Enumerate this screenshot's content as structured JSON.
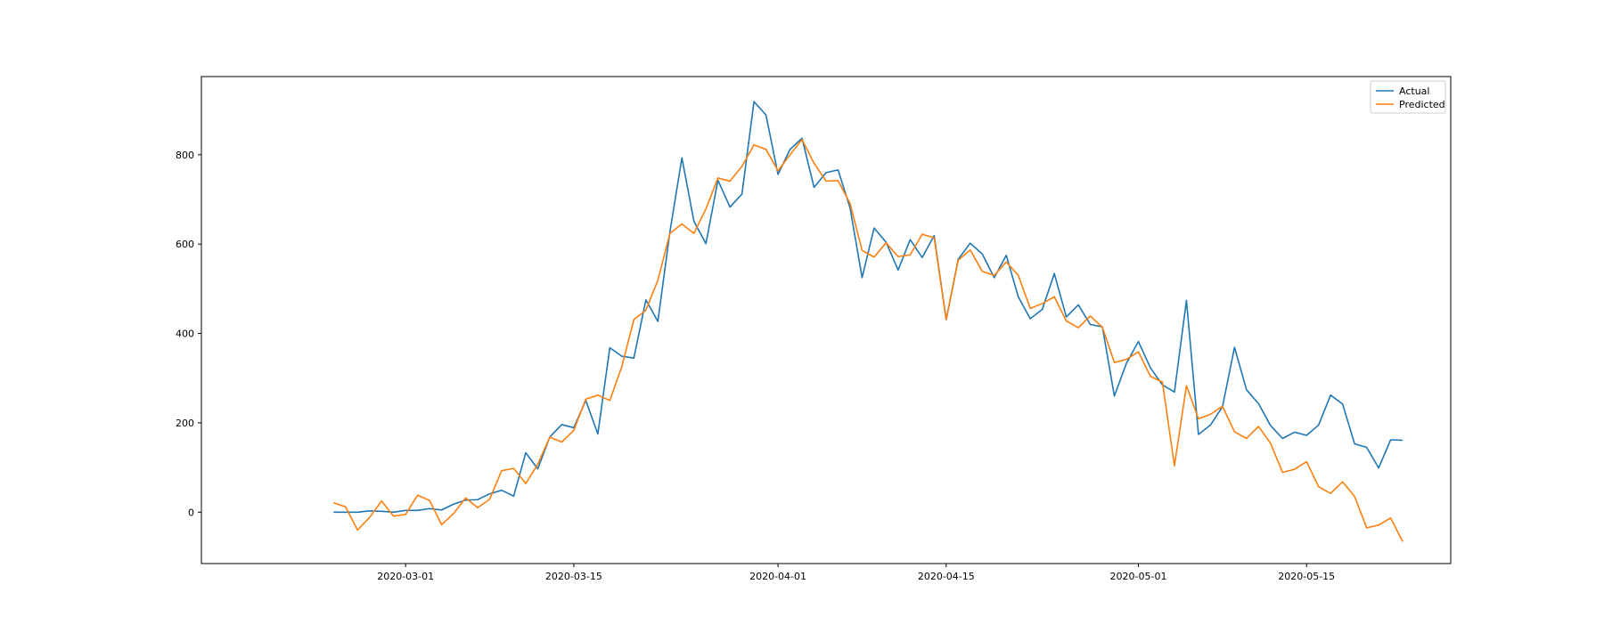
{
  "chart_data": {
    "type": "line",
    "title": "",
    "xlabel": "",
    "ylabel": "",
    "x_start": "2020-02-24",
    "x_end": "2020-05-21",
    "xlim": [
      "2020-02-13",
      "2020-05-27"
    ],
    "ylim": [
      -115,
      975
    ],
    "xticks": [
      "2020-03-01",
      "2020-03-15",
      "2020-04-01",
      "2020-04-15",
      "2020-05-01",
      "2020-05-15"
    ],
    "yticks": [
      0,
      200,
      400,
      600,
      800
    ],
    "grid": false,
    "legend_position": "top-right",
    "series": [
      {
        "name": "Actual",
        "color": "#1f77b4",
        "values": [
          0,
          0,
          0,
          3,
          2,
          0,
          4,
          4,
          8,
          5,
          18,
          27,
          28,
          41,
          49,
          36,
          133,
          97,
          168,
          196,
          189,
          250,
          175,
          368,
          349,
          345,
          475,
          427,
          627,
          793,
          651,
          601,
          743,
          683,
          712,
          919,
          889,
          756,
          812,
          837,
          727,
          760,
          766,
          681,
          525,
          636,
          604,
          542,
          610,
          570,
          619,
          431,
          566,
          602,
          578,
          525,
          575,
          482,
          433,
          454,
          534,
          437,
          464,
          420,
          415,
          260,
          333,
          382,
          323,
          285,
          269,
          474,
          174,
          195,
          236,
          369,
          274,
          243,
          194,
          165,
          179,
          172,
          195,
          262,
          242,
          153,
          145,
          99,
          162,
          161
        ]
      },
      {
        "name": "Predicted",
        "color": "#ff7f0e",
        "values": [
          21,
          12,
          -40,
          -12,
          25,
          -9,
          -5,
          38,
          26,
          -28,
          -3,
          32,
          10,
          29,
          93,
          98,
          64,
          107,
          168,
          157,
          183,
          253,
          262,
          250,
          326,
          431,
          452,
          519,
          624,
          645,
          624,
          679,
          748,
          741,
          774,
          822,
          812,
          764,
          800,
          834,
          781,
          741,
          742,
          691,
          586,
          571,
          603,
          572,
          576,
          622,
          614,
          431,
          564,
          587,
          539,
          530,
          560,
          530,
          456,
          467,
          482,
          428,
          413,
          439,
          414,
          335,
          342,
          359,
          304,
          291,
          104,
          283,
          209,
          219,
          237,
          180,
          165,
          192,
          154,
          89,
          96,
          113,
          57,
          42,
          68,
          35,
          -35,
          -29,
          -13,
          -66
        ]
      }
    ]
  }
}
